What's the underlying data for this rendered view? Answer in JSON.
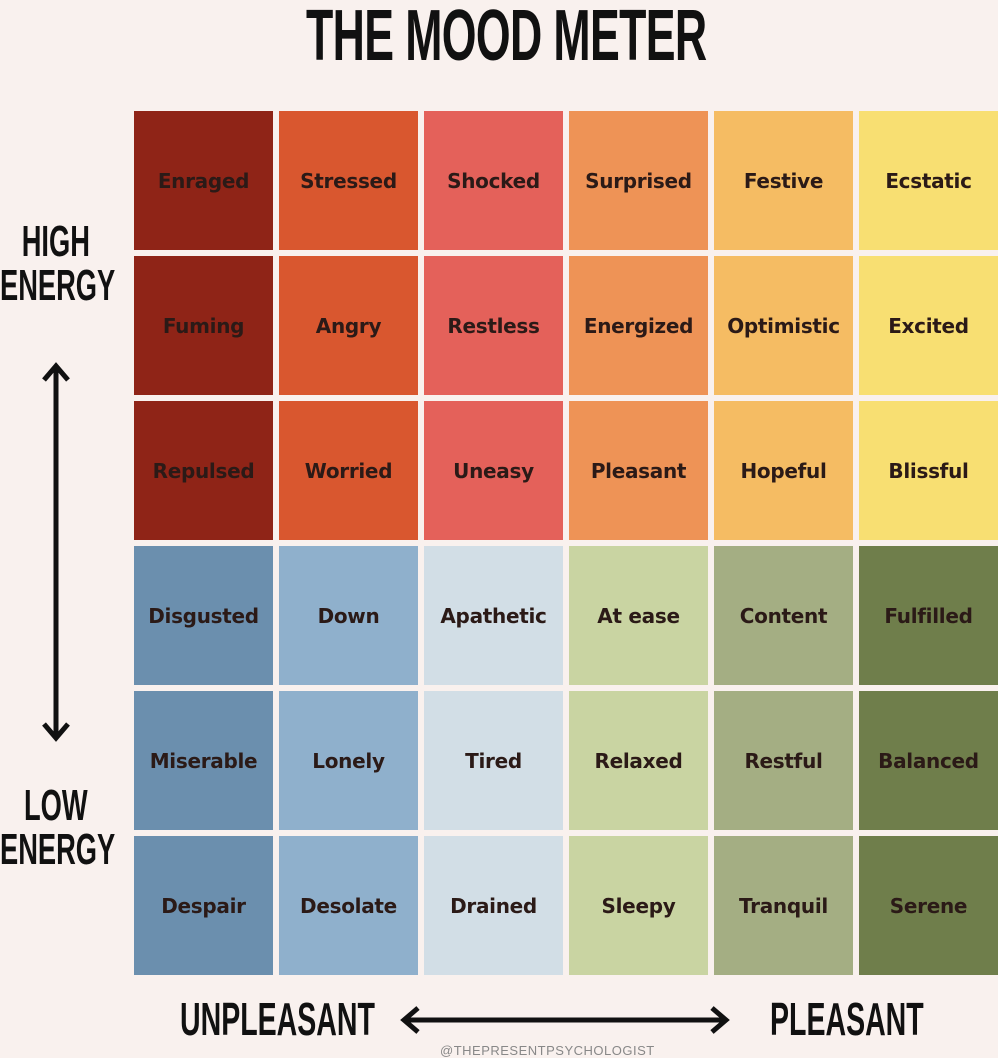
{
  "title": "THE MOOD METER",
  "axis": {
    "high": [
      "HIGH",
      "ENERGY"
    ],
    "low": [
      "LOW",
      "ENERGY"
    ],
    "unpleasant": "UNPLEASANT",
    "pleasant": "PLEASANT"
  },
  "credit": "@THEPRESENTPSYCHOLOGIST",
  "grid": [
    [
      "Enraged",
      "Stressed",
      "Shocked",
      "Surprised",
      "Festive",
      "Ecstatic"
    ],
    [
      "Fuming",
      "Angry",
      "Restless",
      "Energized",
      "Optimistic",
      "Excited"
    ],
    [
      "Repulsed",
      "Worried",
      "Uneasy",
      "Pleasant",
      "Hopeful",
      "Blissful"
    ],
    [
      "Disgusted",
      "Down",
      "Apathetic",
      "At ease",
      "Content",
      "Fulfilled"
    ],
    [
      "Miserable",
      "Lonely",
      "Tired",
      "Relaxed",
      "Restful",
      "Balanced"
    ],
    [
      "Despair",
      "Desolate",
      "Drained",
      "Sleepy",
      "Tranquil",
      "Serene"
    ]
  ],
  "colors": {
    "high_energy": [
      "#8f2417",
      "#d9572f",
      "#e4615a",
      "#ee9356",
      "#f5bc63",
      "#f8df72"
    ],
    "low_energy": [
      "#6b8fae",
      "#8fb0cc",
      "#d2dee6",
      "#c9d4a2",
      "#a4ae83",
      "#6f7e4b"
    ]
  }
}
